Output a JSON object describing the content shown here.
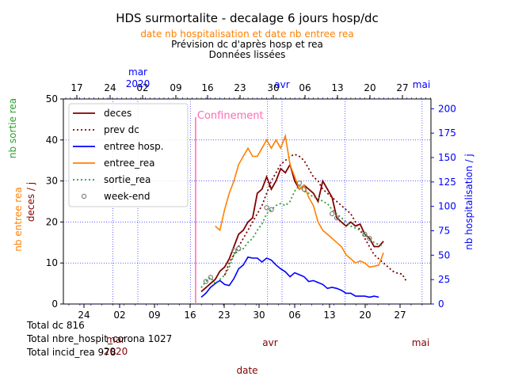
{
  "header": {
    "title": "HDS surmortalite -  decalage 6 jours hosp/dc",
    "subtitle_orange": "date nb hospitalisation et date nb entree rea",
    "subtitle_2": "Prévision dc d'après hosp et rea",
    "subtitle_3": "Données lissées"
  },
  "totals": {
    "dc": "Total dc 816",
    "hosp": "Total nbre_hospit_corona 1027",
    "rea": "Total incid_rea 978"
  },
  "annotation": {
    "confinement": "Confinement"
  },
  "colors": {
    "deces": "#800000",
    "prev_dc": "#800000",
    "entree_hosp": "#0000ff",
    "entree_rea": "#ff8000",
    "sortie_rea": "#2ca02c",
    "week_end": "#808080",
    "confinement": "#ff69b4"
  },
  "chart_data": {
    "type": "line",
    "title": "HDS surmortalite -  decalage 6 jours hosp/dc",
    "xlabel": "date",
    "x_unit": "days since 1 Mar 2020 (bottom axis)",
    "xlim": [
      -2.5,
      30.8
    ],
    "ylim_left": [
      0,
      50
    ],
    "ylim_right": [
      0,
      210
    ],
    "ylabels_left": [
      "nb sortie rea",
      "nb entree rea",
      "deces / j"
    ],
    "ylabel_right": "nb hospitalisation / j",
    "top_axis": {
      "ticks": [
        "17",
        "24",
        "02",
        "09",
        "16",
        "23",
        "30",
        "06",
        "13",
        "20",
        "27"
      ],
      "month_labels": [
        "mar\n2020",
        "avr",
        "mai"
      ],
      "month_colors": [
        "#0000ff",
        "#0000ff",
        "#0000ff"
      ]
    },
    "bottom_axis": {
      "ticks": [
        "24",
        "02",
        "09",
        "16",
        "23",
        "30",
        "06",
        "13",
        "20",
        "27"
      ],
      "month_labels": [
        "mar\n2020",
        "avr",
        "mai"
      ]
    },
    "left_ticks": [
      "0",
      "10",
      "20",
      "30",
      "40",
      "50"
    ],
    "right_ticks": [
      "0",
      "25",
      "50",
      "75",
      "100",
      "125",
      "150",
      "175",
      "200"
    ],
    "confinement_x": 15.8,
    "legend_position": "top-left",
    "legend": [
      "deces",
      "prev dc",
      "entree hosp.",
      "entree_rea",
      "sortie_rea",
      "week-end"
    ],
    "grid": true,
    "series": [
      {
        "name": "deces",
        "axis": "left",
        "x": [
          17,
          18,
          19,
          20,
          21,
          22,
          23,
          24,
          25,
          26,
          27,
          28,
          29,
          30,
          31,
          32,
          33,
          34,
          35,
          36,
          37,
          38,
          39,
          40,
          41,
          42,
          43,
          44,
          45,
          46,
          47,
          48,
          49,
          50,
          51,
          52,
          53,
          54,
          55,
          56
        ],
        "values": [
          3,
          4,
          5,
          6,
          8,
          9,
          11,
          14,
          17,
          18,
          20,
          21,
          27,
          28,
          31,
          28,
          30,
          33,
          32,
          34,
          30,
          28,
          29,
          28,
          27,
          25,
          30,
          28,
          26,
          21,
          20,
          19,
          20,
          19,
          19.5,
          17,
          16,
          14,
          14,
          15.3
        ]
      },
      {
        "name": "prev dc",
        "axis": "left",
        "x": [
          22,
          23,
          24,
          25,
          26,
          27,
          28,
          29,
          30,
          31,
          32,
          33,
          34,
          35,
          36,
          37,
          38,
          39,
          40,
          41,
          42,
          43,
          44,
          45,
          46,
          47,
          48,
          49,
          50,
          51,
          52,
          53,
          54,
          55,
          56,
          57,
          58,
          59,
          60,
          61
        ],
        "values": [
          7,
          10,
          12,
          14,
          16,
          18,
          20,
          22,
          24,
          27,
          30,
          32,
          34,
          35,
          36,
          36.5,
          36,
          35,
          33,
          31,
          30,
          28,
          27,
          26,
          25,
          24,
          23,
          22,
          20,
          18,
          16,
          14,
          12,
          11,
          10,
          9,
          8,
          7.5,
          7.3,
          5.3
        ]
      },
      {
        "name": "entree hosp.",
        "axis": "right",
        "x": [
          17,
          18,
          19,
          20,
          21,
          22,
          23,
          24,
          25,
          26,
          27,
          28,
          29,
          30,
          31,
          32,
          33,
          34,
          35,
          36,
          37,
          38,
          39,
          40,
          41,
          42,
          43,
          44,
          45,
          46,
          47,
          48,
          49,
          50,
          51,
          52,
          53,
          54,
          55
        ],
        "values": [
          7,
          11,
          17,
          21,
          24,
          20,
          19,
          26,
          36,
          40,
          48,
          47,
          47,
          43,
          47,
          45,
          40,
          36,
          33,
          28,
          32,
          30,
          28,
          23,
          24,
          22,
          20,
          16,
          17,
          16,
          14,
          11,
          11,
          8,
          8,
          8,
          7,
          8,
          7
        ]
      },
      {
        "name": "entree_rea",
        "axis": "left",
        "x": [
          20,
          21,
          22,
          23,
          24,
          25,
          26,
          27,
          28,
          29,
          30,
          31,
          32,
          33,
          34,
          35,
          36,
          37,
          38,
          39,
          40,
          41,
          42,
          43,
          44,
          45,
          46,
          47,
          48,
          49,
          50,
          51,
          52,
          53,
          54,
          55,
          56
        ],
        "values": [
          19,
          18,
          23,
          27,
          30,
          34,
          36,
          38,
          36,
          36,
          38,
          40,
          38,
          40,
          38,
          41,
          34,
          31,
          28,
          29,
          26,
          24,
          20,
          18,
          17,
          16,
          15,
          14,
          12,
          11,
          10,
          10.5,
          10,
          9,
          9.2,
          9.5,
          12.5
        ]
      },
      {
        "name": "sortie_rea",
        "axis": "left",
        "x": [
          17,
          18,
          19,
          20,
          21,
          22,
          23,
          24,
          25,
          26,
          27,
          28,
          29,
          30,
          31,
          32,
          33,
          34,
          35,
          36,
          37,
          38,
          39,
          40,
          41,
          42,
          43,
          44,
          45,
          46,
          47,
          48,
          49,
          50,
          51,
          52,
          53,
          54,
          55,
          56
        ],
        "values": [
          4,
          5.5,
          6.5,
          5,
          6,
          7,
          9,
          12,
          13,
          13.5,
          15,
          16,
          18,
          19.5,
          22,
          23,
          24,
          24.5,
          24,
          25,
          27.5,
          29,
          27.5,
          27,
          26,
          26,
          25,
          24.5,
          23,
          22,
          21,
          20,
          19,
          18.5,
          18,
          17,
          16,
          15,
          14.5,
          14
        ]
      },
      {
        "name": "week-end",
        "axis": "left",
        "x": [
          18,
          19,
          24,
          25,
          31,
          32,
          38,
          39,
          45,
          46,
          52,
          53
        ],
        "values": [
          5.5,
          6.5,
          13,
          13.5,
          23.5,
          23,
          29.5,
          28,
          22,
          21,
          17,
          16
        ]
      }
    ]
  }
}
